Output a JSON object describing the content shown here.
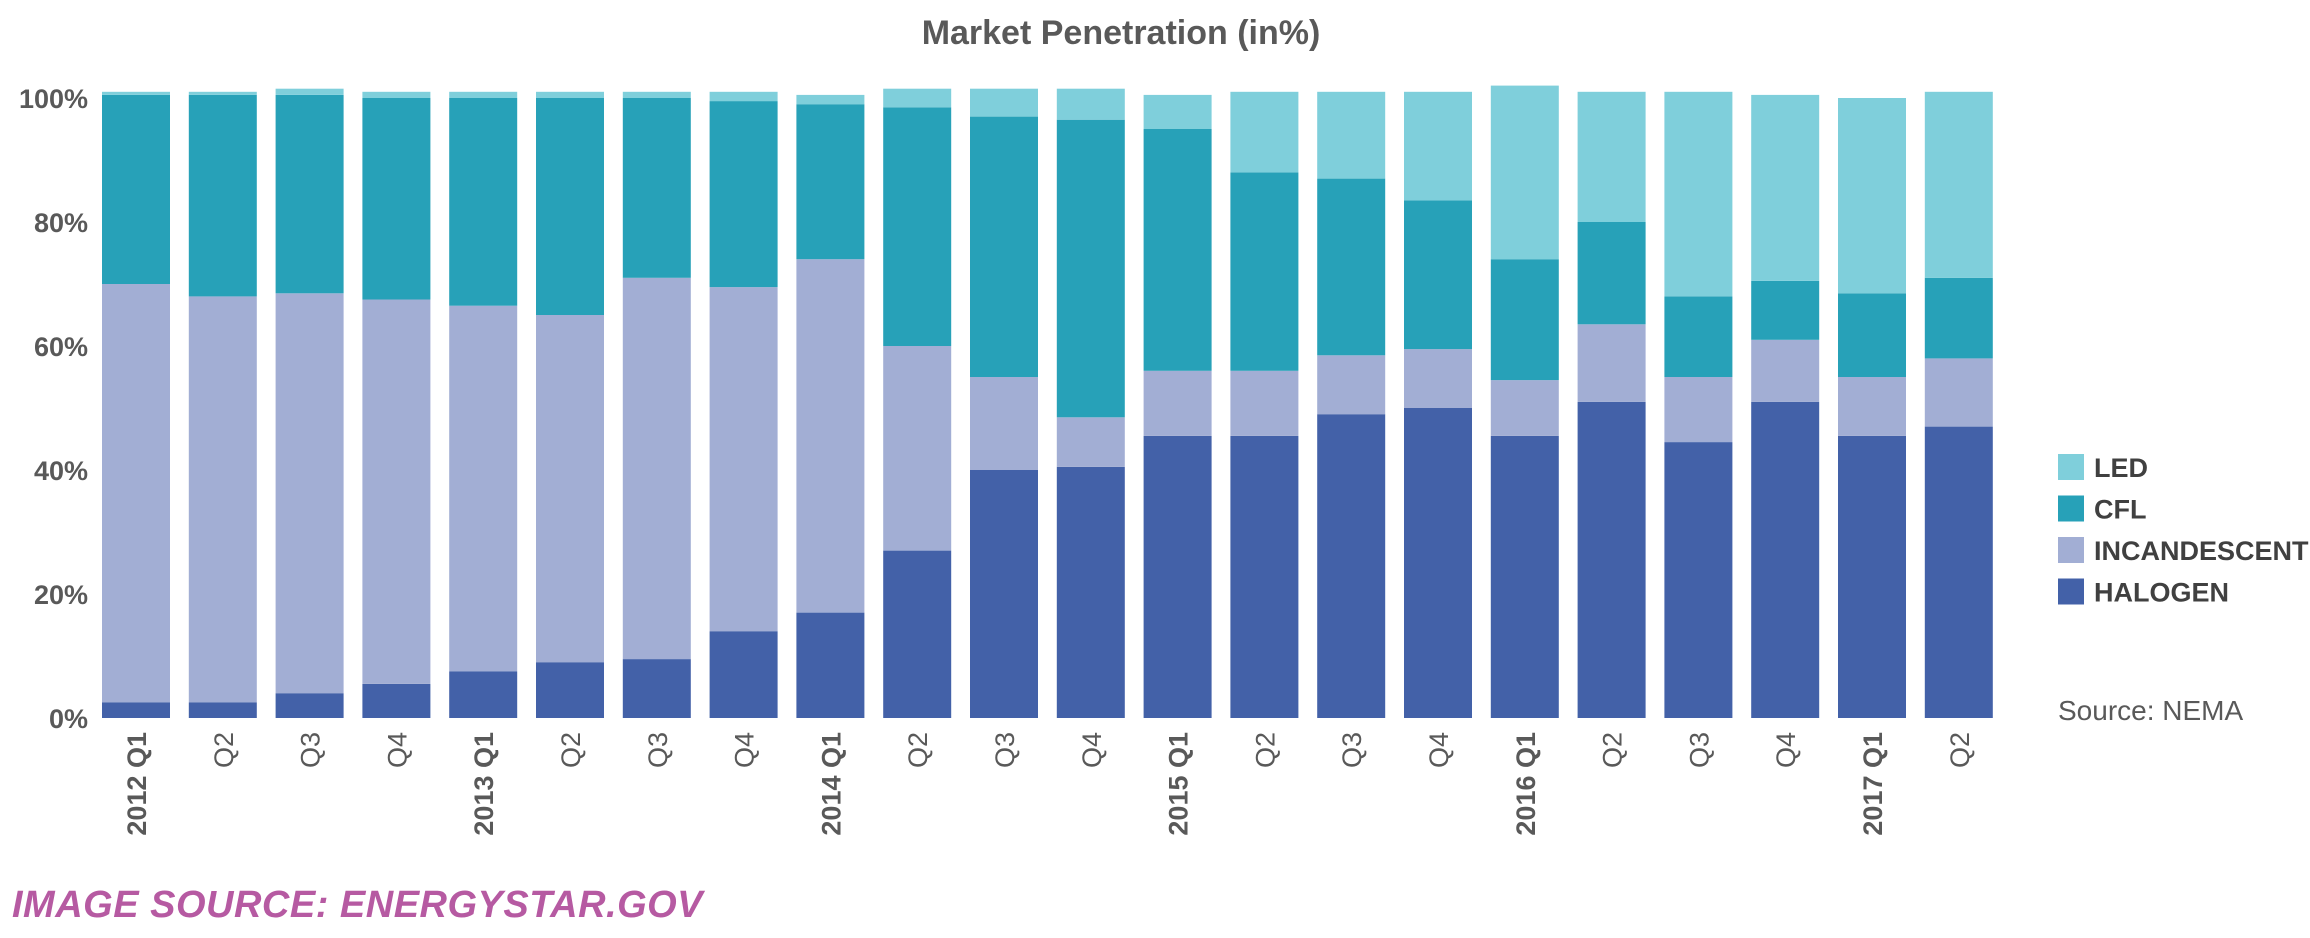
{
  "image_credit": "IMAGE SOURCE: ENERGYSTAR.GOV",
  "chart_data": {
    "type": "bar",
    "stacked": true,
    "title": "Market Penetration (in%)",
    "source_note": "Source: NEMA",
    "ylim": [
      0,
      100
    ],
    "yticks": [
      "0%",
      "20%",
      "40%",
      "60%",
      "80%",
      "100%"
    ],
    "ytick_values": [
      0,
      20,
      40,
      60,
      80,
      100
    ],
    "categories": [
      "2012 Q1",
      "Q2",
      "Q3",
      "Q4",
      "2013 Q1",
      "Q2",
      "Q3",
      "Q4",
      "2014 Q1",
      "Q2",
      "Q3",
      "Q4",
      "2015 Q1",
      "Q2",
      "Q3",
      "Q4",
      "2016 Q1",
      "Q2",
      "Q3",
      "Q4",
      "2017 Q1",
      "Q2"
    ],
    "legend_position": "right",
    "series": [
      {
        "name": "HALOGEN",
        "color": "#4361a8",
        "values": [
          2.5,
          2.5,
          4,
          5.5,
          7.5,
          9,
          9.5,
          14,
          17,
          27,
          40,
          40.5,
          45.5,
          45.5,
          49,
          50,
          45.5,
          51,
          44.5,
          51,
          45.5,
          47
        ]
      },
      {
        "name": "INCANDESCENT",
        "color": "#a2aed4",
        "values": [
          67.5,
          65.5,
          64.5,
          62,
          59,
          56,
          61.5,
          55.5,
          57,
          33,
          15,
          8,
          10.5,
          10.5,
          9.5,
          9.5,
          9,
          12.5,
          10.5,
          10,
          9.5,
          11
        ]
      },
      {
        "name": "CFL",
        "color": "#27a1b8",
        "values": [
          30.5,
          32.5,
          32,
          32.5,
          33.5,
          35,
          29,
          30,
          25,
          38.5,
          42,
          48,
          39,
          32,
          28.5,
          24,
          19.5,
          16.5,
          13,
          9.5,
          13.5,
          13
        ]
      },
      {
        "name": "LED",
        "color": "#7fcfdb",
        "values": [
          0.5,
          0.5,
          1,
          1,
          1,
          1,
          1,
          1.5,
          1.5,
          3,
          4.5,
          5,
          5.5,
          13,
          14,
          17.5,
          28,
          21,
          33,
          30,
          31.5,
          30
        ]
      }
    ]
  }
}
